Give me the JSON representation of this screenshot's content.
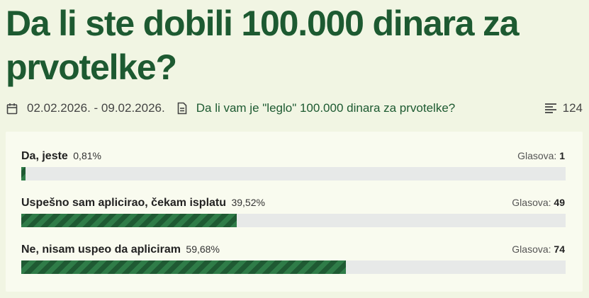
{
  "poll": {
    "title": "Da li ste dobili 100.000 dinara za prvotelke?",
    "date_range": "02.02.2026. - 09.02.2026.",
    "question": "Da li vam je \"leglo\" 100.000 dinara za prvotelke?",
    "total_count": "124",
    "votes_label": "Glasova:",
    "options": [
      {
        "label": "Da, jeste",
        "percent": "0,81%",
        "votes": "1",
        "fill_fraction": 0.0081
      },
      {
        "label": "Uspešno sam aplicirao, čekam isplatu",
        "percent": "39,52%",
        "votes": "49",
        "fill_fraction": 0.3952
      },
      {
        "label": "Ne, nisam uspeo da apliciram",
        "percent": "59,68%",
        "votes": "74",
        "fill_fraction": 0.5968
      }
    ]
  },
  "icons": {
    "date": "calendar-icon",
    "question": "document-icon",
    "count": "list-icon"
  },
  "colors": {
    "title": "#1d5a31",
    "link": "#1d5a31",
    "bar_fill": "#2f7c48",
    "bar_stripe": "#1f5a33",
    "bar_track": "#e7e9e8",
    "page_bg": "#f1f5e3",
    "panel_bg": "#f9fbef"
  }
}
